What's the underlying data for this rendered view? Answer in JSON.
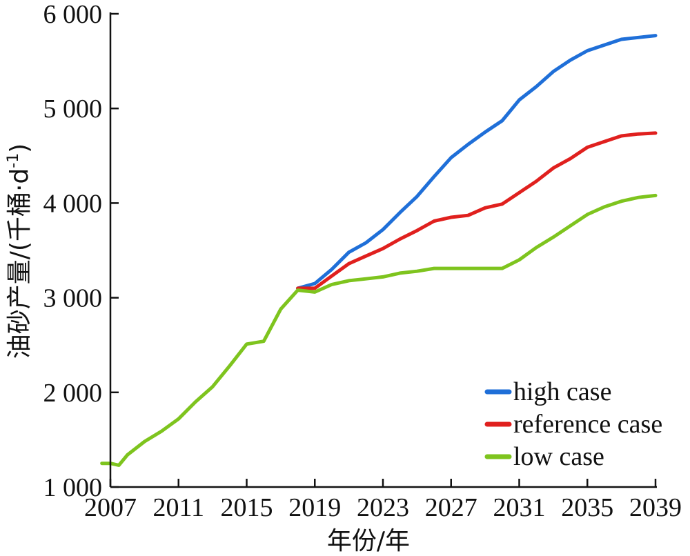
{
  "chart_data": {
    "type": "line",
    "title": "",
    "xlabel": "年份/年",
    "ylabel": "油砂产量/(千桶·d",
    "ylabel_sup": "-1",
    "ylabel_close": ")",
    "xlim": [
      2007,
      2039
    ],
    "ylim": [
      1000,
      6000
    ],
    "xticks": [
      2007,
      2011,
      2015,
      2019,
      2023,
      2027,
      2031,
      2035,
      2039
    ],
    "xtick_labels": [
      "2007",
      "2011",
      "2015",
      "2019",
      "2023",
      "2027",
      "2031",
      "2035",
      "2039"
    ],
    "yticks": [
      1000,
      2000,
      3000,
      4000,
      5000,
      6000
    ],
    "ytick_labels": [
      "1 000",
      "2 000",
      "3 000",
      "4 000",
      "5 000",
      "6 000"
    ],
    "grid": false,
    "legend_position": "bottom-right",
    "series": [
      {
        "name": "high case",
        "color": "#1f6fd8",
        "x": [
          2018,
          2019,
          2020,
          2021,
          2022,
          2023,
          2024,
          2025,
          2026,
          2027,
          2028,
          2029,
          2030,
          2031,
          2032,
          2033,
          2034,
          2035,
          2036,
          2037,
          2038,
          2039
        ],
        "values": [
          3100,
          3150,
          3300,
          3480,
          3580,
          3720,
          3900,
          4070,
          4280,
          4480,
          4620,
          4750,
          4870,
          5090,
          5230,
          5390,
          5510,
          5610,
          5670,
          5730,
          5750,
          5770
        ]
      },
      {
        "name": "reference case",
        "color": "#e0201e",
        "x": [
          2018,
          2019,
          2020,
          2021,
          2022,
          2023,
          2024,
          2025,
          2026,
          2027,
          2028,
          2029,
          2030,
          2031,
          2032,
          2033,
          2034,
          2035,
          2036,
          2037,
          2038,
          2039
        ],
        "values": [
          3100,
          3100,
          3230,
          3360,
          3440,
          3520,
          3620,
          3710,
          3810,
          3850,
          3870,
          3950,
          3990,
          4110,
          4230,
          4370,
          4470,
          4590,
          4650,
          4710,
          4730,
          4740
        ]
      },
      {
        "name": "low case",
        "color": "#7ec41e",
        "x": [
          2006.5,
          2007,
          2007.5,
          2008,
          2009,
          2010,
          2011,
          2012,
          2013,
          2014,
          2015,
          2016,
          2017,
          2018,
          2019,
          2020,
          2021,
          2022,
          2023,
          2024,
          2025,
          2026,
          2027,
          2028,
          2029,
          2030,
          2031,
          2032,
          2033,
          2034,
          2035,
          2036,
          2037,
          2038,
          2039
        ],
        "values": [
          1250,
          1250,
          1230,
          1340,
          1480,
          1590,
          1720,
          1900,
          2060,
          2280,
          2510,
          2540,
          2880,
          3080,
          3060,
          3140,
          3180,
          3200,
          3220,
          3260,
          3280,
          3310,
          3310,
          3310,
          3310,
          3310,
          3400,
          3530,
          3640,
          3760,
          3880,
          3960,
          4020,
          4060,
          4080
        ]
      }
    ]
  }
}
